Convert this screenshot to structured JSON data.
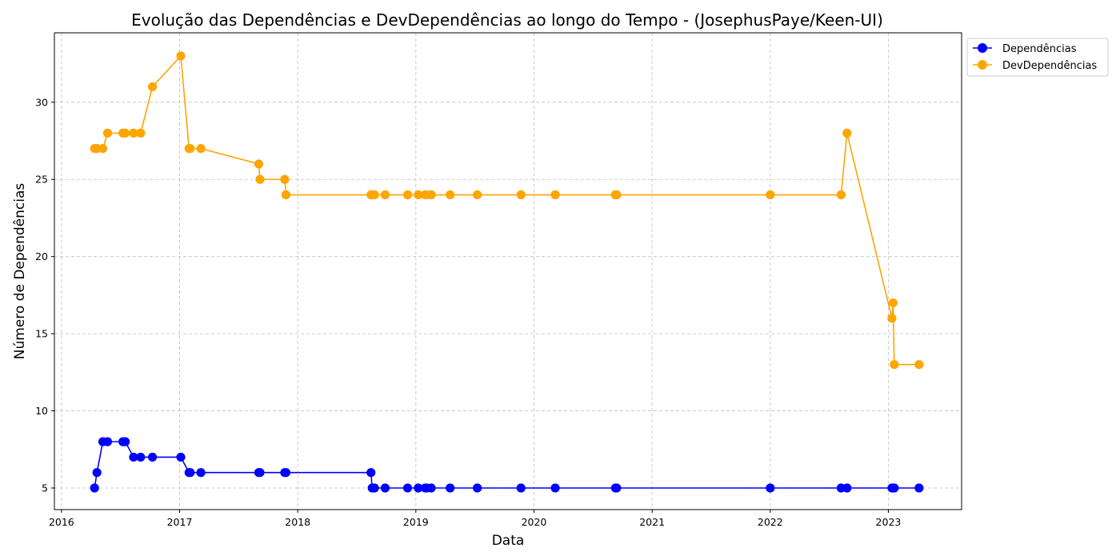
{
  "chart_data": {
    "type": "line",
    "title": "Evolução das Dependências e DevDependências ao longo do Tempo - (JosephusPaye/Keen-UI)",
    "xlabel": "Data",
    "ylabel": "Número de Dependências",
    "xlim": [
      2015.94,
      2023.62
    ],
    "ylim": [
      3.6,
      34.5
    ],
    "x_ticks": [
      2016,
      2017,
      2018,
      2019,
      2020,
      2021,
      2022,
      2023
    ],
    "y_ticks": [
      5,
      10,
      15,
      20,
      25,
      30
    ],
    "grid": true,
    "legend_position": "outside-top-right",
    "x": [
      2016.28,
      2016.3,
      2016.35,
      2016.39,
      2016.52,
      2016.54,
      2016.61,
      2016.67,
      2016.77,
      2017.01,
      2017.08,
      2017.09,
      2017.18,
      2017.67,
      2017.68,
      2017.89,
      2017.9,
      2018.62,
      2018.63,
      2018.65,
      2018.74,
      2018.93,
      2019.02,
      2019.08,
      2019.09,
      2019.13,
      2019.29,
      2019.52,
      2019.89,
      2020.18,
      2020.69,
      2020.7,
      2022.0,
      2022.6,
      2022.65,
      2023.03,
      2023.04,
      2023.05,
      2023.26
    ],
    "series": [
      {
        "name": "Dependências",
        "color": "#0000ff",
        "values": [
          5,
          6,
          8,
          8,
          8,
          8,
          7,
          7,
          7,
          7,
          6,
          6,
          6,
          6,
          6,
          6,
          6,
          6,
          5,
          5,
          5,
          5,
          5,
          5,
          5,
          5,
          5,
          5,
          5,
          5,
          5,
          5,
          5,
          5,
          5,
          5,
          5,
          5,
          5
        ]
      },
      {
        "name": "DevDependências",
        "color": "#ffa500",
        "values": [
          27,
          27,
          27,
          28,
          28,
          28,
          28,
          28,
          31,
          33,
          27,
          27,
          27,
          26,
          25,
          25,
          24,
          24,
          24,
          24,
          24,
          24,
          24,
          24,
          24,
          24,
          24,
          24,
          24,
          24,
          24,
          24,
          24,
          24,
          28,
          16,
          17,
          13,
          13
        ]
      }
    ]
  }
}
